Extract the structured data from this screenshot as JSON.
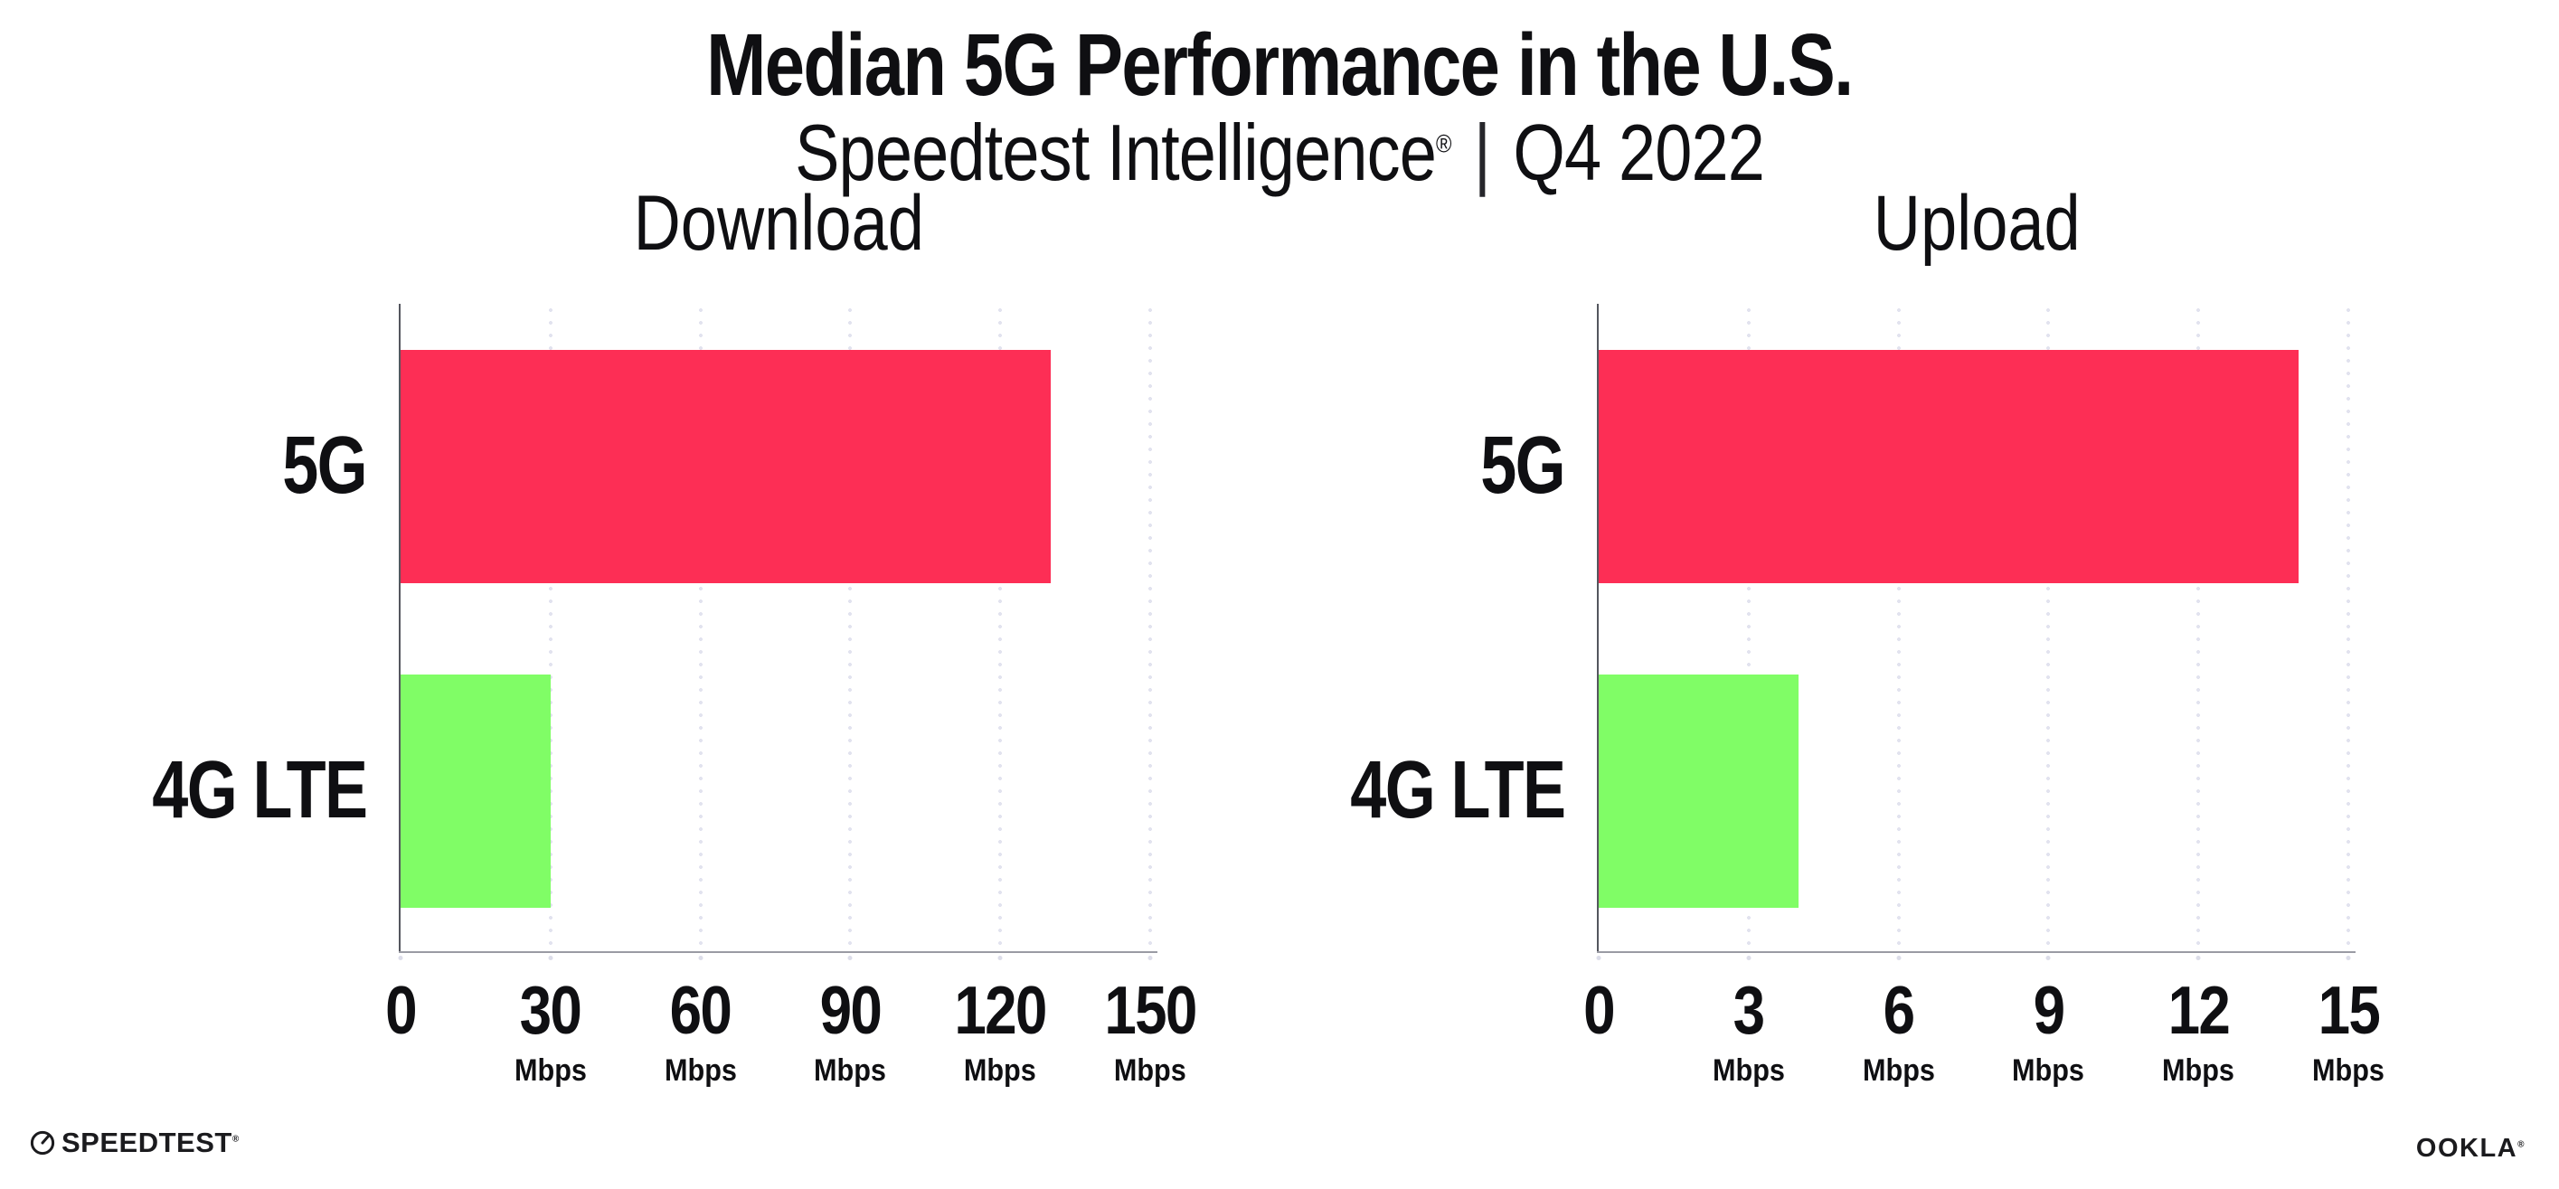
{
  "header": {
    "title": "Median 5G Performance in the U.S.",
    "subtitle": {
      "brand": "Speedtest Intelligence",
      "reg": "®",
      "separator": "|",
      "period": "Q4 2022"
    }
  },
  "chart_data": [
    {
      "type": "bar",
      "orientation": "horizontal",
      "title": "Download",
      "categories": [
        "5G",
        "4G LTE"
      ],
      "values": [
        130,
        30
      ],
      "unit": "Mbps",
      "xlim": [
        0,
        150
      ],
      "xticks": [
        0,
        30,
        60,
        90,
        120,
        150
      ],
      "tick_unit_label": "Mbps",
      "bar_colors": [
        "#fd2e55",
        "#80fd66"
      ],
      "grid": "vertical-dotted",
      "legend": "none"
    },
    {
      "type": "bar",
      "orientation": "horizontal",
      "title": "Upload",
      "categories": [
        "5G",
        "4G LTE"
      ],
      "values": [
        14,
        4
      ],
      "unit": "Mbps",
      "xlim": [
        0,
        15
      ],
      "xticks": [
        0,
        3,
        6,
        9,
        12,
        15
      ],
      "tick_unit_label": "Mbps",
      "bar_colors": [
        "#fd2e55",
        "#80fd66"
      ],
      "grid": "vertical-dotted",
      "legend": "none"
    }
  ],
  "footer": {
    "speedtest": {
      "label": "SPEEDTEST",
      "reg": "®",
      "icon": "speedtest-gauge-icon"
    },
    "ookla": {
      "label": "OOKLA",
      "reg": "®"
    }
  },
  "palette": {
    "bar_5g": "#fd2e55",
    "bar_4g_lte": "#80fd66",
    "gridline": "#e2e3ef",
    "axis_x": "#9a9ba4",
    "axis_y": "#54565e",
    "text": "#0f0f12"
  }
}
